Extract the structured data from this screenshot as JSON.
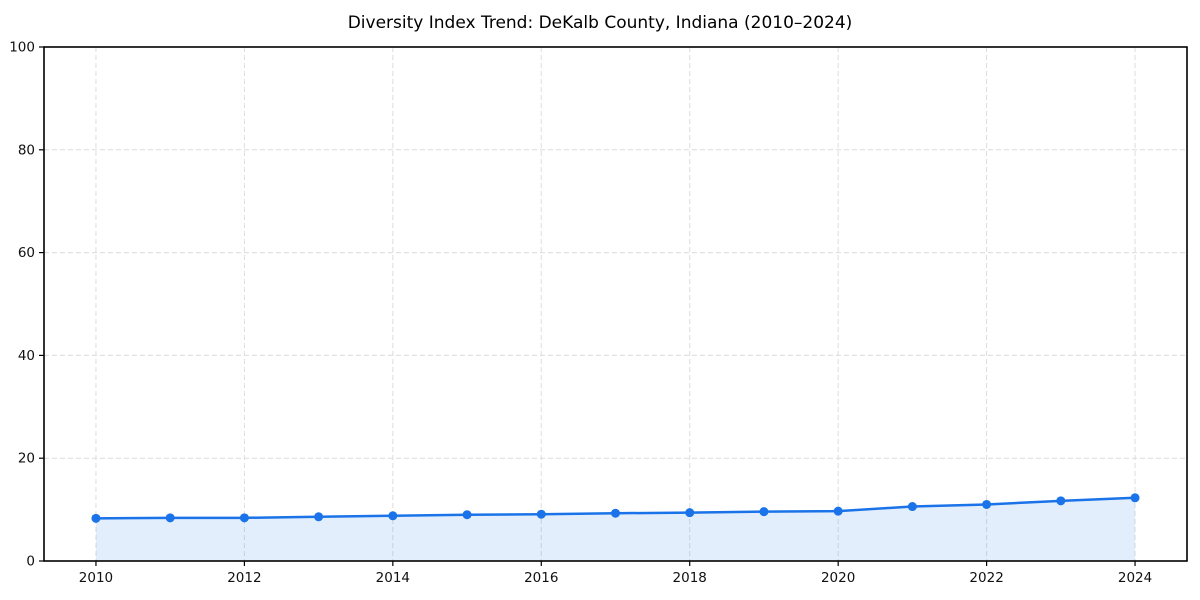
{
  "chart_data": {
    "type": "line",
    "title": "Diversity Index Trend: DeKalb County, Indiana (2010–2024)",
    "x": [
      2010,
      2011,
      2012,
      2013,
      2014,
      2015,
      2016,
      2017,
      2018,
      2019,
      2020,
      2021,
      2022,
      2023,
      2024
    ],
    "series": [
      {
        "name": "Diversity Index",
        "values": [
          8.3,
          8.4,
          8.4,
          8.6,
          8.8,
          9.0,
          9.1,
          9.3,
          9.4,
          9.6,
          9.7,
          10.6,
          11.0,
          11.7,
          12.3
        ]
      }
    ],
    "xticks": [
      2010,
      2012,
      2014,
      2016,
      2018,
      2020,
      2022,
      2024
    ],
    "yticks": [
      0,
      20,
      40,
      60,
      80,
      100
    ],
    "ylim": [
      0,
      100
    ],
    "x_margin_frac": 0.05,
    "grid": "dashed",
    "legend": "none",
    "xlabel": "",
    "ylabel": "",
    "area_fill_under_line": true,
    "colors": {
      "line": "#1a73e8",
      "marker": "#1a73e8",
      "area_fill": "rgba(26,115,232,0.12)",
      "grid": "#dcdcdc",
      "axis": "#000000",
      "tick_text": "#111111",
      "title_text": "#000000",
      "background": "#ffffff"
    }
  }
}
